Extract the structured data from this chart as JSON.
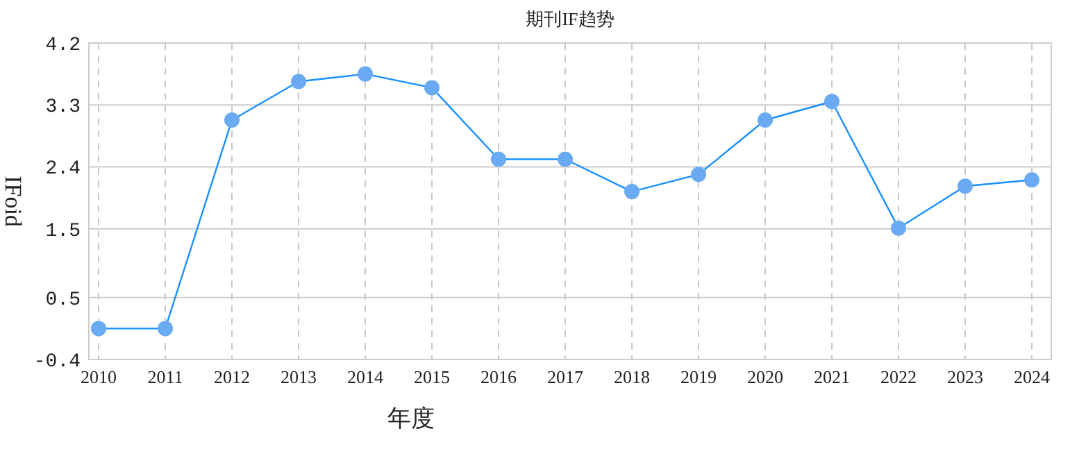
{
  "chart_data": {
    "type": "line",
    "title": "期刊IF趋势",
    "xlabel": "年度",
    "ylabel": "IFoid",
    "categories": [
      "2010",
      "2011",
      "2012",
      "2013",
      "2014",
      "2015",
      "2016",
      "2017",
      "2018",
      "2019",
      "2020",
      "2021",
      "2022",
      "2023",
      "2024"
    ],
    "series": [
      {
        "color": "#1890ff",
        "values": [
          0.05,
          0.05,
          3.08,
          3.64,
          3.75,
          3.55,
          2.51,
          2.51,
          2.04,
          2.29,
          3.08,
          3.35,
          1.51,
          2.12,
          2.21
        ]
      }
    ],
    "ylim": [
      -0.4,
      4.2
    ],
    "yticks": [
      -0.4,
      0.5,
      1.5,
      2.4,
      3.3,
      4.2
    ],
    "grid": true,
    "marker": "circle",
    "line_style": "solid"
  }
}
